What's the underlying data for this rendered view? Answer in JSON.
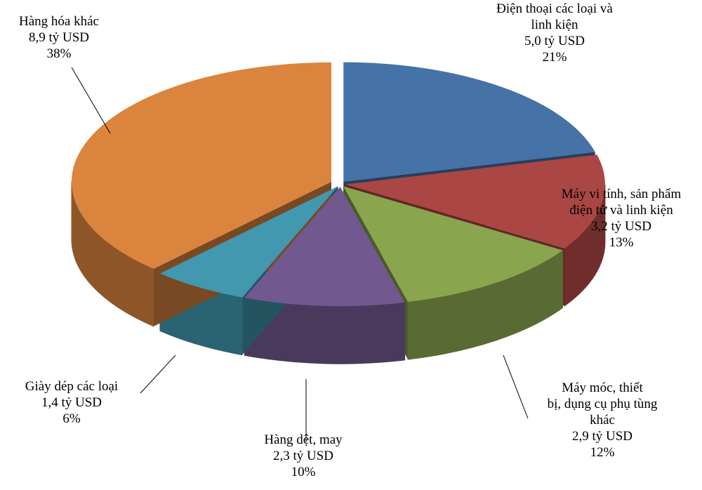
{
  "chart_data": {
    "type": "pie",
    "categories": [
      "Điện thoại các loại và\nlinh kiện",
      "Máy vi tính, sản phẩm\nđiện tử và linh kiện",
      "Máy móc, thiết\nbị, dụng cụ phụ tùng\nkhác",
      "Hàng dệt, may",
      "Giày dép các loại",
      "Hàng hóa khác"
    ],
    "values": [
      21,
      13,
      12,
      10,
      6,
      38
    ],
    "value_labels": [
      "21%",
      "13%",
      "12%",
      "10%",
      "6%",
      "38%"
    ],
    "amount_labels": [
      "5,0 tỷ USD",
      "3,2 tỷ USD",
      "2,9 tỷ USD",
      "2,3 tỷ USD",
      "1,4 tỷ USD",
      "8,9 tỷ USD"
    ],
    "colors": [
      "#4572a7",
      "#aa4643",
      "#89a54e",
      "#71588f",
      "#4198af",
      "#db843d"
    ]
  }
}
